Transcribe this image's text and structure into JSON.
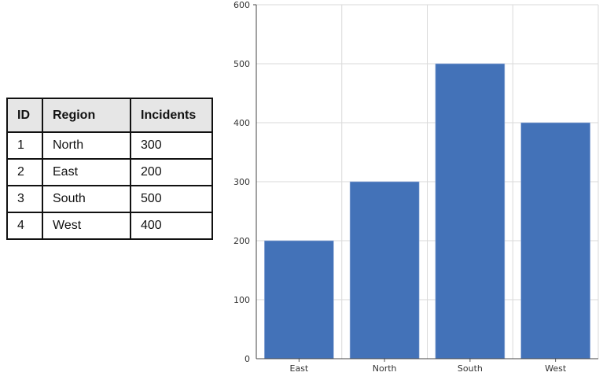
{
  "table": {
    "headers": [
      "ID",
      "Region",
      "Incidents"
    ],
    "rows": [
      [
        "1",
        "North",
        "300"
      ],
      [
        "2",
        "East",
        "200"
      ],
      [
        "3",
        "South",
        "500"
      ],
      [
        "4",
        "West",
        "400"
      ]
    ]
  },
  "chart_data": {
    "type": "bar",
    "categories": [
      "East",
      "North",
      "South",
      "West"
    ],
    "values": [
      200,
      300,
      500,
      400
    ],
    "title": "",
    "xlabel": "",
    "ylabel": "",
    "ylim": [
      0,
      600
    ],
    "yticks": [
      0,
      100,
      200,
      300,
      400,
      500,
      600
    ],
    "grid": true,
    "bar_color": "#4372b8"
  }
}
